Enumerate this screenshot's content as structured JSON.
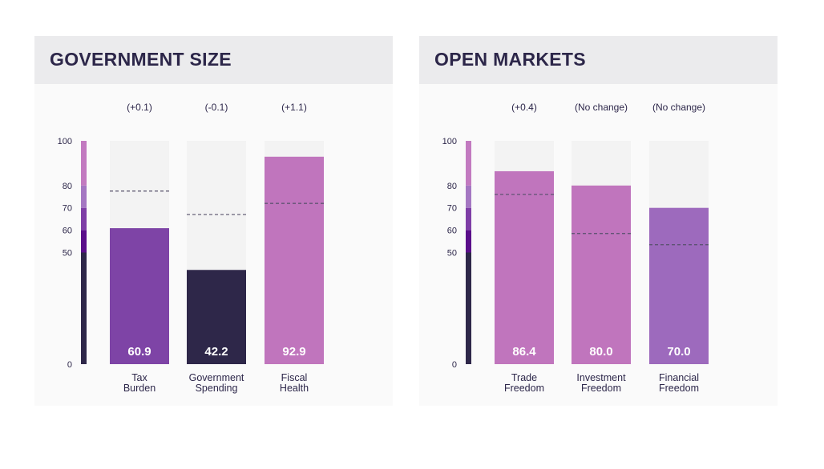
{
  "colors": {
    "scale_bands": [
      "#2e2749",
      "#5a0e8a",
      "#7e3ea6",
      "#a477c2",
      "#c27ac0"
    ],
    "track": "#f3f3f3",
    "ref_line": "#55506a",
    "header_bg": "#ebebed",
    "panel_bg": "#fafafa",
    "text": "#2c2649"
  },
  "chart_data": [
    {
      "type": "bar",
      "title": "GOVERNMENT SIZE",
      "ylim": [
        0,
        100
      ],
      "yticks": [
        0,
        50,
        60,
        70,
        80,
        100
      ],
      "scale_bands": [
        [
          0,
          50
        ],
        [
          50,
          60
        ],
        [
          60,
          70
        ],
        [
          70,
          80
        ],
        [
          80,
          100
        ]
      ],
      "categories": [
        "Tax Burden",
        "Government Spending",
        "Fiscal Health"
      ],
      "category_lines": [
        [
          "Tax",
          "Burden"
        ],
        [
          "Government",
          "Spending"
        ],
        [
          "Fiscal",
          "Health"
        ]
      ],
      "values": [
        60.9,
        42.2,
        92.9
      ],
      "value_labels": [
        "60.9",
        "42.2",
        "92.9"
      ],
      "changes": [
        "(+0.1)",
        "(-0.1)",
        "(+1.1)"
      ],
      "reference_values": [
        77.5,
        67,
        72
      ],
      "bar_colors": [
        "#7e44a6",
        "#2e2749",
        "#c075bd"
      ]
    },
    {
      "type": "bar",
      "title": "OPEN MARKETS",
      "ylim": [
        0,
        100
      ],
      "yticks": [
        0,
        50,
        60,
        70,
        80,
        100
      ],
      "scale_bands": [
        [
          0,
          50
        ],
        [
          50,
          60
        ],
        [
          60,
          70
        ],
        [
          70,
          80
        ],
        [
          80,
          100
        ]
      ],
      "categories": [
        "Trade Freedom",
        "Investment Freedom",
        "Financial Freedom"
      ],
      "category_lines": [
        [
          "Trade",
          "Freedom"
        ],
        [
          "Investment",
          "Freedom"
        ],
        [
          "Financial",
          "Freedom"
        ]
      ],
      "values": [
        86.4,
        80.0,
        70.0
      ],
      "value_labels": [
        "86.4",
        "80.0",
        "70.0"
      ],
      "changes": [
        "(+0.4)",
        "(No change)",
        "(No change)"
      ],
      "reference_values": [
        76,
        58.5,
        53.5
      ],
      "bar_colors": [
        "#c075bd",
        "#c075bd",
        "#9d6abd"
      ]
    }
  ]
}
